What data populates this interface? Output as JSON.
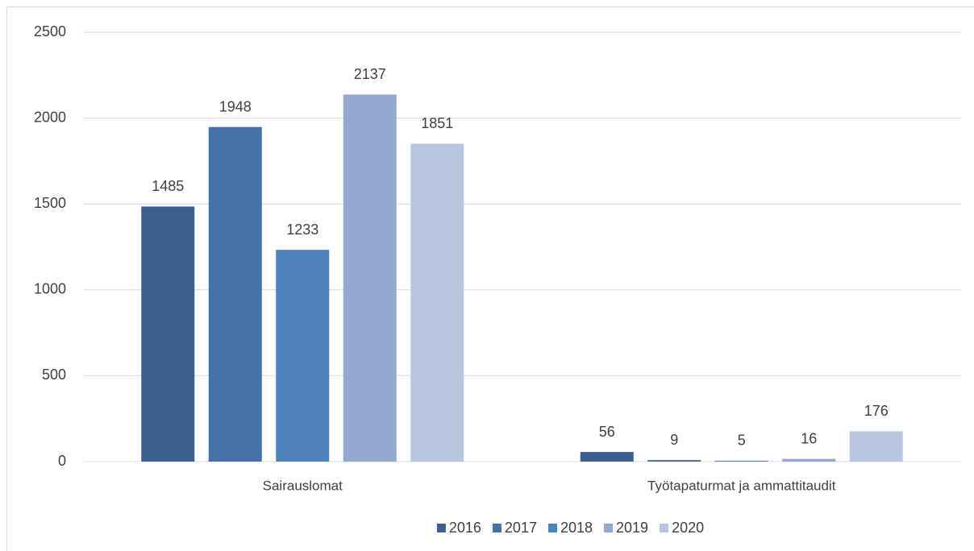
{
  "chart_data": {
    "type": "bar",
    "categories": [
      "Sairauslomat",
      "Työtapaturmat ja ammattitaudit"
    ],
    "series": [
      {
        "name": "2016",
        "color": "#3b5f8e",
        "values": [
          1485,
          56
        ]
      },
      {
        "name": "2017",
        "color": "#4472a8",
        "values": [
          1948,
          9
        ]
      },
      {
        "name": "2018",
        "color": "#4f81bd",
        "values": [
          1233,
          5
        ]
      },
      {
        "name": "2019",
        "color": "#95a9d0",
        "values": [
          2137,
          16
        ]
      },
      {
        "name": "2020",
        "color": "#b9c6e0",
        "values": [
          1851,
          176
        ]
      }
    ],
    "ylim": [
      0,
      2500
    ],
    "yticks": [
      0,
      500,
      1000,
      1500,
      2000,
      2500
    ],
    "grid": true,
    "legend": "bottom"
  }
}
